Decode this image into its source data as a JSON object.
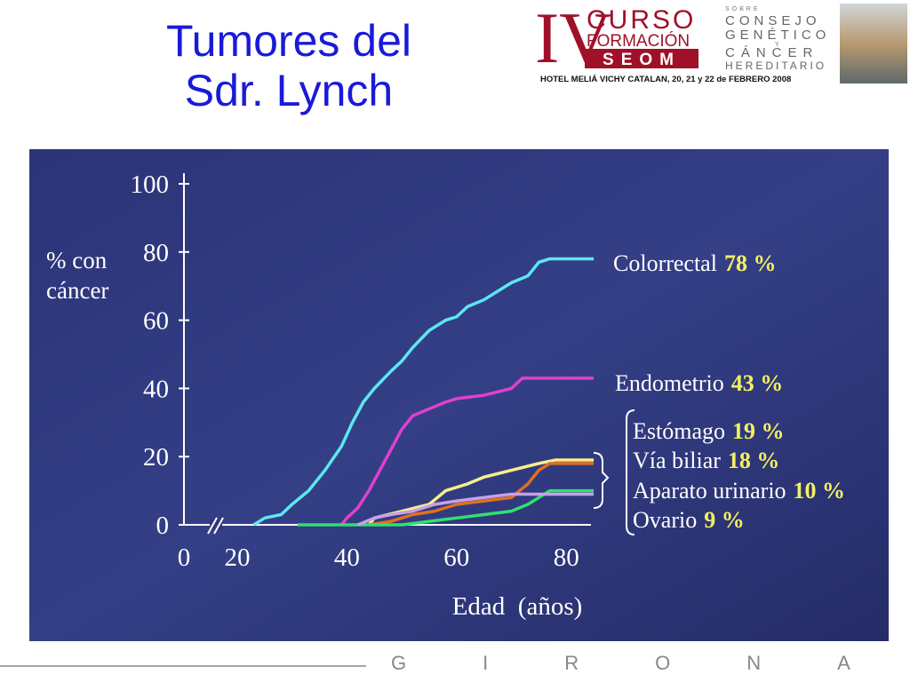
{
  "header": {
    "title": "Tumores del Sdr. Lynch",
    "logo_numeral": "IV",
    "logo_line1": "CURSO",
    "logo_line2": "FORMACIÓN",
    "logo_line3": "SEOM",
    "logo_small": "SOBRE",
    "logo_right1": "CONSEJO",
    "logo_right2": "GENÉTICO",
    "logo_right3": "Y",
    "logo_right4": "CÁNCER",
    "logo_right5": "HEREDITARIO",
    "venue": "HOTEL MELIÁ VICHY CATALAN, 20, 21 y 22 de FEBRERO 2008"
  },
  "chart_data": {
    "type": "line",
    "xlabel": "Edad  (años)",
    "ylabel": "% con cáncer",
    "xticks": [
      0,
      20,
      40,
      60,
      80
    ],
    "ylim": [
      0,
      100
    ],
    "yticks": [
      0,
      20,
      40,
      60,
      80,
      100
    ],
    "series": [
      {
        "name": "Colorrectal",
        "color": "#5ce8f0",
        "x": [
          23,
          25,
          28,
          30,
          33,
          36,
          39,
          41,
          43,
          45,
          48,
          50,
          52,
          55,
          58,
          60,
          62,
          65,
          68,
          70,
          73,
          75,
          77,
          85
        ],
        "values": [
          0,
          2,
          3,
          6,
          10,
          16,
          23,
          30,
          36,
          40,
          45,
          48,
          52,
          57,
          60,
          61,
          64,
          66,
          69,
          71,
          73,
          77,
          78,
          78
        ],
        "value_labels": [
          null,
          null,
          null,
          null,
          null,
          null,
          null,
          null,
          null,
          null,
          null,
          null,
          null,
          null,
          null,
          null,
          null,
          null,
          null,
          null,
          null,
          null,
          null,
          "78 %"
        ]
      },
      {
        "name": "Endometrio",
        "color": "#e040d0",
        "x": [
          39,
          40,
          42,
          44,
          46,
          48,
          50,
          52,
          55,
          58,
          60,
          65,
          70,
          72,
          85
        ],
        "values": [
          0,
          2,
          5,
          10,
          16,
          22,
          28,
          32,
          34,
          36,
          37,
          38,
          40,
          43,
          43
        ],
        "value_labels": [
          null,
          null,
          null,
          null,
          null,
          null,
          null,
          null,
          null,
          null,
          null,
          null,
          null,
          null,
          "43 %"
        ]
      },
      {
        "name": "Estómago",
        "color": "#f4f08c",
        "x": [
          44,
          45,
          50,
          55,
          58,
          62,
          65,
          70,
          75,
          78,
          85
        ],
        "values": [
          0,
          2,
          4,
          6,
          10,
          12,
          14,
          16,
          18,
          19,
          19
        ],
        "value_labels": [
          null,
          null,
          null,
          null,
          null,
          null,
          null,
          null,
          null,
          null,
          "19 %"
        ]
      },
      {
        "name": "Vía biliar",
        "color": "#e07020",
        "x": [
          44,
          48,
          52,
          56,
          60,
          65,
          70,
          73,
          75,
          77,
          85
        ],
        "values": [
          0,
          1,
          3,
          4,
          6,
          7,
          8,
          12,
          16,
          18,
          18
        ],
        "value_labels": [
          null,
          null,
          null,
          null,
          null,
          null,
          null,
          null,
          null,
          null,
          "18 %"
        ]
      },
      {
        "name": "Aparato urinario",
        "color": "#30e070",
        "x": [
          31,
          50,
          55,
          60,
          65,
          70,
          73,
          76,
          77,
          85
        ],
        "values": [
          0,
          0,
          1,
          2,
          3,
          4,
          6,
          9,
          10,
          10
        ],
        "value_labels": [
          null,
          null,
          null,
          null,
          null,
          null,
          null,
          null,
          null,
          "10 %"
        ]
      },
      {
        "name": "Ovario",
        "color": "#c8a0e8",
        "x": [
          42,
          45,
          48,
          52,
          56,
          60,
          65,
          70,
          85
        ],
        "values": [
          0,
          2,
          3,
          4,
          6,
          7,
          8,
          9,
          9
        ],
        "value_labels": [
          null,
          null,
          null,
          null,
          null,
          null,
          null,
          null,
          "9 %"
        ]
      }
    ]
  },
  "footer": {
    "city": "GIRONA"
  }
}
